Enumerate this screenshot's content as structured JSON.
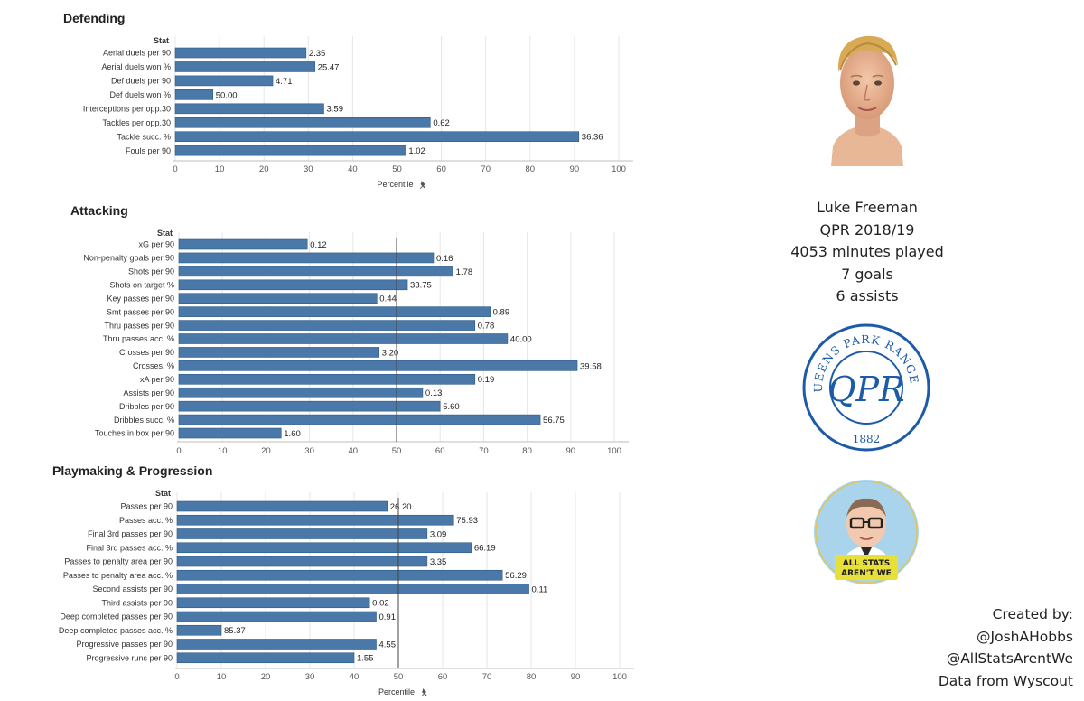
{
  "chart_data": [
    {
      "type": "bar",
      "orientation": "horizontal",
      "title": "Defending",
      "stat_header": "Stat",
      "xlabel": "Percentile",
      "xlim": [
        0,
        100
      ],
      "xticks": [
        "0",
        "10",
        "20",
        "30",
        "40",
        "50",
        "60",
        "70",
        "80",
        "90",
        "100"
      ],
      "reference_line": 50,
      "bars": [
        {
          "label": "Aerial duels per 90",
          "percentile": 29.5,
          "value_label": "2.35"
        },
        {
          "label": "Aerial duels won %",
          "percentile": 31.5,
          "value_label": "25.47"
        },
        {
          "label": "Def duels per 90",
          "percentile": 22,
          "value_label": "4.71"
        },
        {
          "label": "Def duels won %",
          "percentile": 8.5,
          "value_label": "50.00"
        },
        {
          "label": "Interceptions per opp.30",
          "percentile": 33.5,
          "value_label": "3.59"
        },
        {
          "label": "Tackles per opp.30",
          "percentile": 57.5,
          "value_label": "0.62"
        },
        {
          "label": "Tackle succ. %",
          "percentile": 91,
          "value_label": "36.36"
        },
        {
          "label": "Fouls per 90",
          "percentile": 52,
          "value_label": "1.02"
        }
      ]
    },
    {
      "type": "bar",
      "orientation": "horizontal",
      "title": "Attacking",
      "stat_header": "Stat",
      "xlabel": "",
      "xlim": [
        0,
        100
      ],
      "xticks": [
        "0",
        "10",
        "20",
        "30",
        "40",
        "50",
        "60",
        "70",
        "80",
        "90",
        "100"
      ],
      "reference_line": 50,
      "bars": [
        {
          "label": "xG per 90",
          "percentile": 29.5,
          "value_label": "0.12"
        },
        {
          "label": "Non-penalty goals per 90",
          "percentile": 58.5,
          "value_label": "0.16"
        },
        {
          "label": "Shots per 90",
          "percentile": 63,
          "value_label": "1.78"
        },
        {
          "label": "Shots on target %",
          "percentile": 52.5,
          "value_label": "33.75"
        },
        {
          "label": "Key passes per 90",
          "percentile": 45.5,
          "value_label": "0.44"
        },
        {
          "label": "Smt passes per 90",
          "percentile": 71.5,
          "value_label": "0.89"
        },
        {
          "label": "Thru passes per 90",
          "percentile": 68,
          "value_label": "0.78"
        },
        {
          "label": "Thru passes acc. %",
          "percentile": 75.5,
          "value_label": "40.00"
        },
        {
          "label": "Crosses per 90",
          "percentile": 46,
          "value_label": "3.20"
        },
        {
          "label": "Crosses, %",
          "percentile": 91.5,
          "value_label": "39.58"
        },
        {
          "label": "xA per 90",
          "percentile": 68,
          "value_label": "0.19"
        },
        {
          "label": "Assists per 90",
          "percentile": 56,
          "value_label": "0.13"
        },
        {
          "label": "Dribbles per 90",
          "percentile": 60,
          "value_label": "5.60"
        },
        {
          "label": "Dribbles succ. %",
          "percentile": 83,
          "value_label": "56.75"
        },
        {
          "label": "Touches in box per 90",
          "percentile": 23.5,
          "value_label": "1.60"
        }
      ]
    },
    {
      "type": "bar",
      "orientation": "horizontal",
      "title": "Playmaking & Progression",
      "stat_header": "Stat",
      "xlabel": "Percentile",
      "xlim": [
        0,
        100
      ],
      "xticks": [
        "0",
        "10",
        "20",
        "30",
        "40",
        "50",
        "60",
        "70",
        "80",
        "90",
        "100"
      ],
      "reference_line": 50,
      "bars": [
        {
          "label": "Passes per 90",
          "percentile": 47.5,
          "value_label": "26.20"
        },
        {
          "label": "Passes acc. %",
          "percentile": 62.5,
          "value_label": "75.93"
        },
        {
          "label": "Final 3rd passes per 90",
          "percentile": 56.5,
          "value_label": "3.09"
        },
        {
          "label": "Final 3rd passes acc. %",
          "percentile": 66.5,
          "value_label": "66.19"
        },
        {
          "label": "Passes to penalty area per 90",
          "percentile": 56.5,
          "value_label": "3.35"
        },
        {
          "label": "Passes to penalty area acc. %",
          "percentile": 73.5,
          "value_label": "56.29"
        },
        {
          "label": "Second assists per 90",
          "percentile": 79.5,
          "value_label": "0.11"
        },
        {
          "label": "Third assists per 90",
          "percentile": 43.5,
          "value_label": "0.02"
        },
        {
          "label": "Deep completed passes per 90",
          "percentile": 45,
          "value_label": "0.91"
        },
        {
          "label": "Deep completed passes acc. %",
          "percentile": 10,
          "value_label": "85.37"
        },
        {
          "label": "Progressive passes per 90",
          "percentile": 45,
          "value_label": "4.55"
        },
        {
          "label": "Progressive runs per 90",
          "percentile": 40,
          "value_label": "1.55"
        }
      ]
    }
  ],
  "player": {
    "name": "Luke Freeman",
    "team_season": "QPR 2018/19",
    "minutes": "4053 minutes played",
    "goals": "7 goals",
    "assists": "6 assists"
  },
  "qpr_badge": {
    "text": "QUEENS PARK RANGERS",
    "year": "1882",
    "monogram": "QPR",
    "color": "#1d5ba8"
  },
  "ase_badge": {
    "line1": "ALL STATS",
    "line2": "AREN'T WE",
    "color": "#a9d4ec"
  },
  "credits": {
    "line1": "Created by:",
    "line2": "@JoshAHobbs",
    "line3": "@AllStatsArentWe",
    "line4": "Data from Wyscout"
  },
  "colors": {
    "bar": "#4a78a8",
    "qpr_blue": "#1d5ba8"
  }
}
